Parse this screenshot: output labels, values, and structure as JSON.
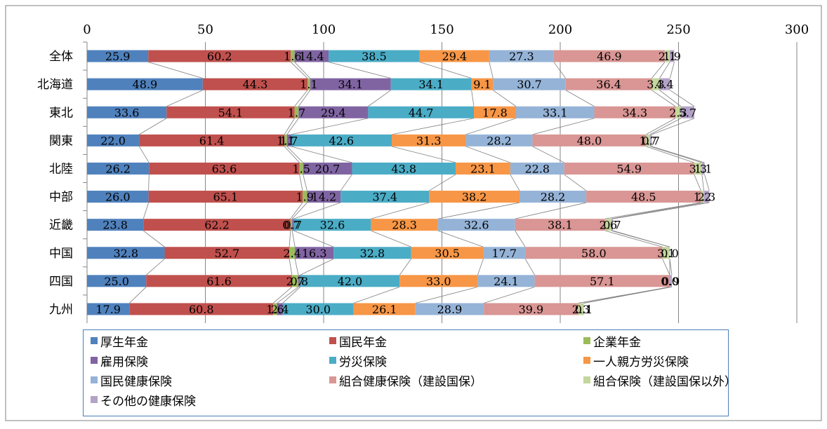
{
  "chart_data": {
    "type": "bar",
    "orientation": "horizontal",
    "stacked": true,
    "xlim": [
      0,
      300
    ],
    "xticks": [
      0,
      50,
      100,
      150,
      200,
      250,
      300
    ],
    "grid": true,
    "legend_position": "bottom",
    "categories": [
      "全体",
      "北海道",
      "東北",
      "関東",
      "北陸",
      "中部",
      "近畿",
      "中国",
      "四国",
      "九州"
    ],
    "series": [
      {
        "name": "厚生年金",
        "color": "#4f81bd",
        "values": [
          25.9,
          48.9,
          33.6,
          22.0,
          26.2,
          26.0,
          23.8,
          32.8,
          25.0,
          17.9
        ]
      },
      {
        "name": "国民年金",
        "color": "#c0504d",
        "values": [
          60.2,
          44.3,
          54.1,
          61.4,
          63.6,
          65.1,
          62.2,
          52.7,
          61.6,
          60.8
        ]
      },
      {
        "name": "企業年金",
        "color": "#9bbb59",
        "values": [
          1.6,
          1.1,
          1.7,
          1.1,
          1.5,
          1.9,
          0.7,
          2.4,
          2.7,
          1.6
        ]
      },
      {
        "name": "雇用保険",
        "color": "#8064a2",
        "values": [
          14.4,
          34.1,
          29.4,
          1.7,
          20.7,
          14.2,
          0.7,
          16.3,
          0.8,
          2.4
        ]
      },
      {
        "name": "労災保険",
        "color": "#4bacc6",
        "values": [
          38.5,
          34.1,
          44.7,
          42.6,
          43.8,
          37.4,
          32.6,
          32.8,
          42.0,
          30.0
        ]
      },
      {
        "name": "一人親方労災保険",
        "color": "#f79646",
        "values": [
          29.4,
          9.1,
          17.8,
          31.3,
          23.1,
          38.2,
          28.3,
          30.5,
          33.0,
          26.1
        ]
      },
      {
        "name": "国民健康保険",
        "color": "#95b3d7",
        "values": [
          27.3,
          30.7,
          33.1,
          28.2,
          22.8,
          28.2,
          32.6,
          17.7,
          24.1,
          28.9
        ]
      },
      {
        "name": "組合健康保険（建設国保）",
        "color": "#d99694",
        "values": [
          46.9,
          36.4,
          34.3,
          48.0,
          54.9,
          48.5,
          38.1,
          58.0,
          57.1,
          39.9
        ]
      },
      {
        "name": "組合保険（建設国保以外）",
        "color": "#c3d69b",
        "values": [
          2.1,
          3.3,
          2.3,
          1.7,
          3.3,
          1.2,
          2.6,
          3.1,
          0.0,
          2.3
        ]
      },
      {
        "name": "その他の健康保険",
        "color": "#b3a2c7",
        "values": [
          1.9,
          4.4,
          5.7,
          0.7,
          1.1,
          2.3,
          0.7,
          0.0,
          0.9,
          0.1
        ]
      }
    ]
  }
}
